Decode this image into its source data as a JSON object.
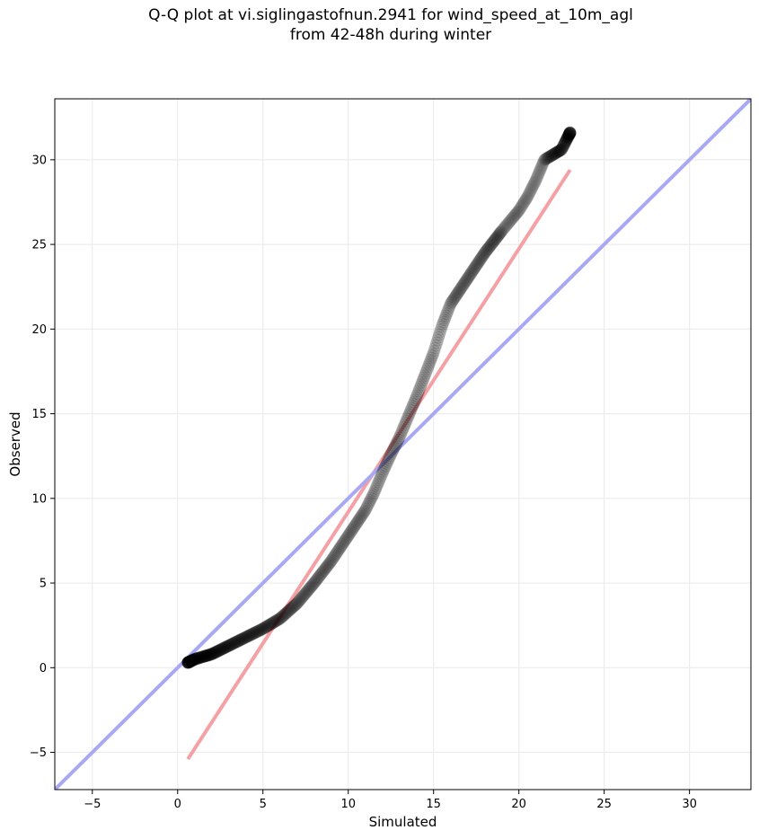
{
  "title_lines": [
    "Q-Q plot at vi.siglingastofnun.2941 for wind_speed_at_10m_agl",
    "from 42-48h during winter"
  ],
  "colors": {
    "points": "#000000",
    "fit_line": "#f4a0a4",
    "identity_line": "#a8a8f4",
    "grid": "#ececec",
    "frame": "#000000"
  },
  "chart_data": {
    "type": "scatter",
    "title": "Q-Q plot at vi.siglingastofnun.2941 for wind_speed_at_10m_agl\nfrom 42-48h during winter",
    "xlabel": "Simulated",
    "ylabel": "Observed",
    "xlim": [
      -7.2,
      33.6
    ],
    "ylim": [
      -7.2,
      33.6
    ],
    "x_ticks": [
      -5,
      0,
      5,
      10,
      15,
      20,
      25,
      30
    ],
    "y_ticks": [
      -5,
      0,
      5,
      10,
      15,
      20,
      25,
      30
    ],
    "grid": true,
    "legend": "none",
    "quantile_curve": {
      "x": [
        0.6,
        1.0,
        2.0,
        3.0,
        4.0,
        5.0,
        6.0,
        7.0,
        8.0,
        9.0,
        10.0,
        11.0,
        11.5,
        12.0,
        12.5,
        13.0,
        13.5,
        14.0,
        14.5,
        15.0,
        15.5,
        16.0,
        17.0,
        18.0,
        19.0,
        20.0,
        20.5,
        21.0,
        21.5,
        22.5,
        23.0
      ],
      "y": [
        0.3,
        0.5,
        0.8,
        1.3,
        1.8,
        2.3,
        2.9,
        3.8,
        5.0,
        6.3,
        7.8,
        9.3,
        10.3,
        11.5,
        12.6,
        13.6,
        14.8,
        16.0,
        17.3,
        18.6,
        20.2,
        21.5,
        23.0,
        24.5,
        25.8,
        27.0,
        27.8,
        28.8,
        30.0,
        30.6,
        31.6
      ]
    },
    "series": [
      {
        "type": "line",
        "role": "fit",
        "x": [
          0.6,
          23.0
        ],
        "y": [
          -5.4,
          29.4
        ]
      },
      {
        "type": "line",
        "role": "identity",
        "x": [
          -7.2,
          33.6
        ],
        "y": [
          -7.2,
          33.6
        ]
      }
    ]
  }
}
